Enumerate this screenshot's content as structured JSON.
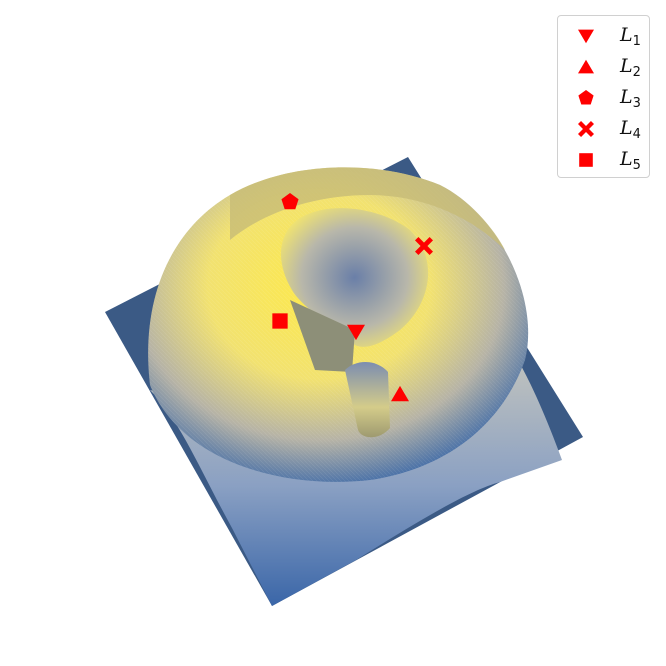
{
  "chart_data": {
    "type": "surface",
    "description_hidden": false,
    "colormap": [
      "#2c4f8c",
      "#5a6f96",
      "#a6a17f",
      "#fde94a"
    ],
    "plane_color": "#3b5a85",
    "marker_color": "#ff0000",
    "points": [
      {
        "name": "L",
        "sub": "1",
        "marker": "triangle-down"
      },
      {
        "name": "L",
        "sub": "2",
        "marker": "triangle-up"
      },
      {
        "name": "L",
        "sub": "3",
        "marker": "pentagon"
      },
      {
        "name": "L",
        "sub": "4",
        "marker": "x"
      },
      {
        "name": "L",
        "sub": "5",
        "marker": "square"
      }
    ],
    "legend_position": "top-right",
    "grid": false,
    "axes_visible": false
  }
}
